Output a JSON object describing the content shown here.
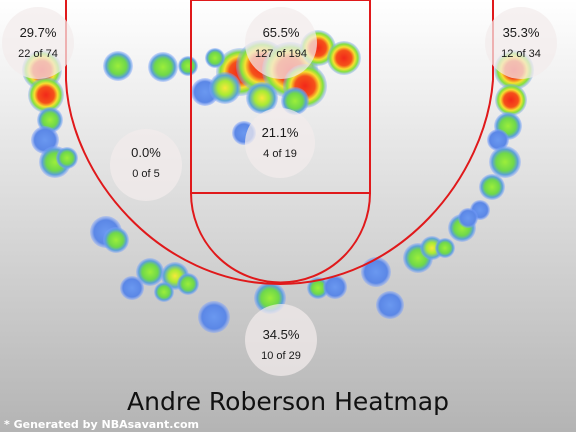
{
  "chart_data": {
    "type": "heatmap",
    "title": "Andre Roberson Heatmap",
    "credit": "* Generated by NBAsavant.com",
    "colors": {
      "background_top": "#ffffff",
      "background_bottom": "#b4b4b4",
      "court_lines": "#e0191b",
      "zone_circle": "#f2ecec",
      "heat_cold": "#5b8be8",
      "heat_warm": "#8fe832",
      "heat_hot": "#f5e430",
      "heat_max": "#f02a1c"
    },
    "zones": [
      {
        "id": "left-corner-three",
        "pct": "29.7%",
        "made_of": "22 of 74"
      },
      {
        "id": "restricted-area",
        "pct": "65.5%",
        "made_of": "127 of 194"
      },
      {
        "id": "right-corner-three",
        "pct": "35.3%",
        "made_of": "12 of 34"
      },
      {
        "id": "paint-non-ra",
        "pct": "21.1%",
        "made_of": "4 of 19"
      },
      {
        "id": "mid-range",
        "pct": "0.0%",
        "made_of": "0 of 5"
      },
      {
        "id": "above-break-three",
        "pct": "34.5%",
        "made_of": "10 of 29"
      }
    ]
  }
}
